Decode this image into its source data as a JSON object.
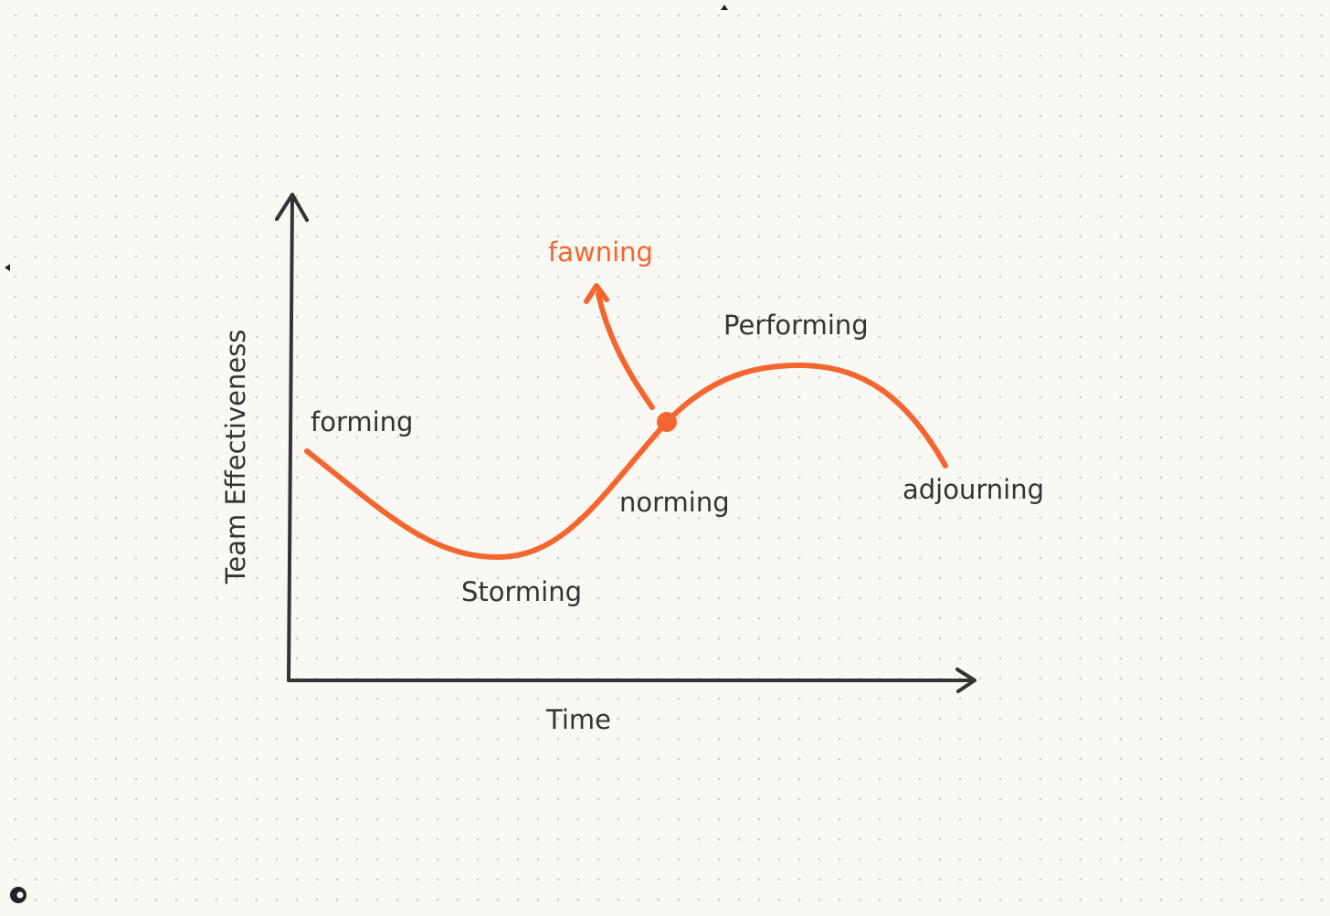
{
  "axes": {
    "y_label": "Team Effectiveness",
    "x_label": "Time"
  },
  "stages": [
    {
      "label": "forming"
    },
    {
      "label": "Storming"
    },
    {
      "label": "norming"
    },
    {
      "label": "Performing"
    },
    {
      "label": "adjourning"
    }
  ],
  "branch": {
    "label": "fawning"
  }
}
